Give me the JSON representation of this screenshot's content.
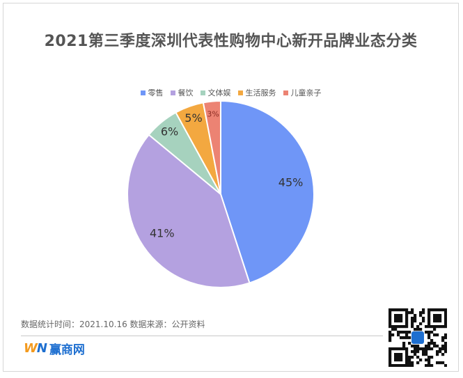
{
  "chart_data": {
    "type": "pie",
    "title": "2021第三季度深圳代表性购物中心新开品牌业态分类",
    "categories": [
      "零售",
      "餐饮",
      "文体娱",
      "生活服务",
      "儿童亲子"
    ],
    "values": [
      45,
      41,
      6,
      5,
      3
    ],
    "labels": [
      "45%",
      "41%",
      "6%",
      "5%",
      "3%"
    ],
    "colors": [
      "#6f96f7",
      "#b4a1e0",
      "#a6d2be",
      "#f3a840",
      "#ec8373"
    ],
    "legend_position": "top"
  },
  "footer": {
    "note": "数据统计时间：2021.10.16  数据来源：公开资料",
    "brand_mark_w": "W",
    "brand_mark_n": "N",
    "brand_name": "赢商网"
  },
  "icons": {
    "qr": "qr-code-icon"
  }
}
